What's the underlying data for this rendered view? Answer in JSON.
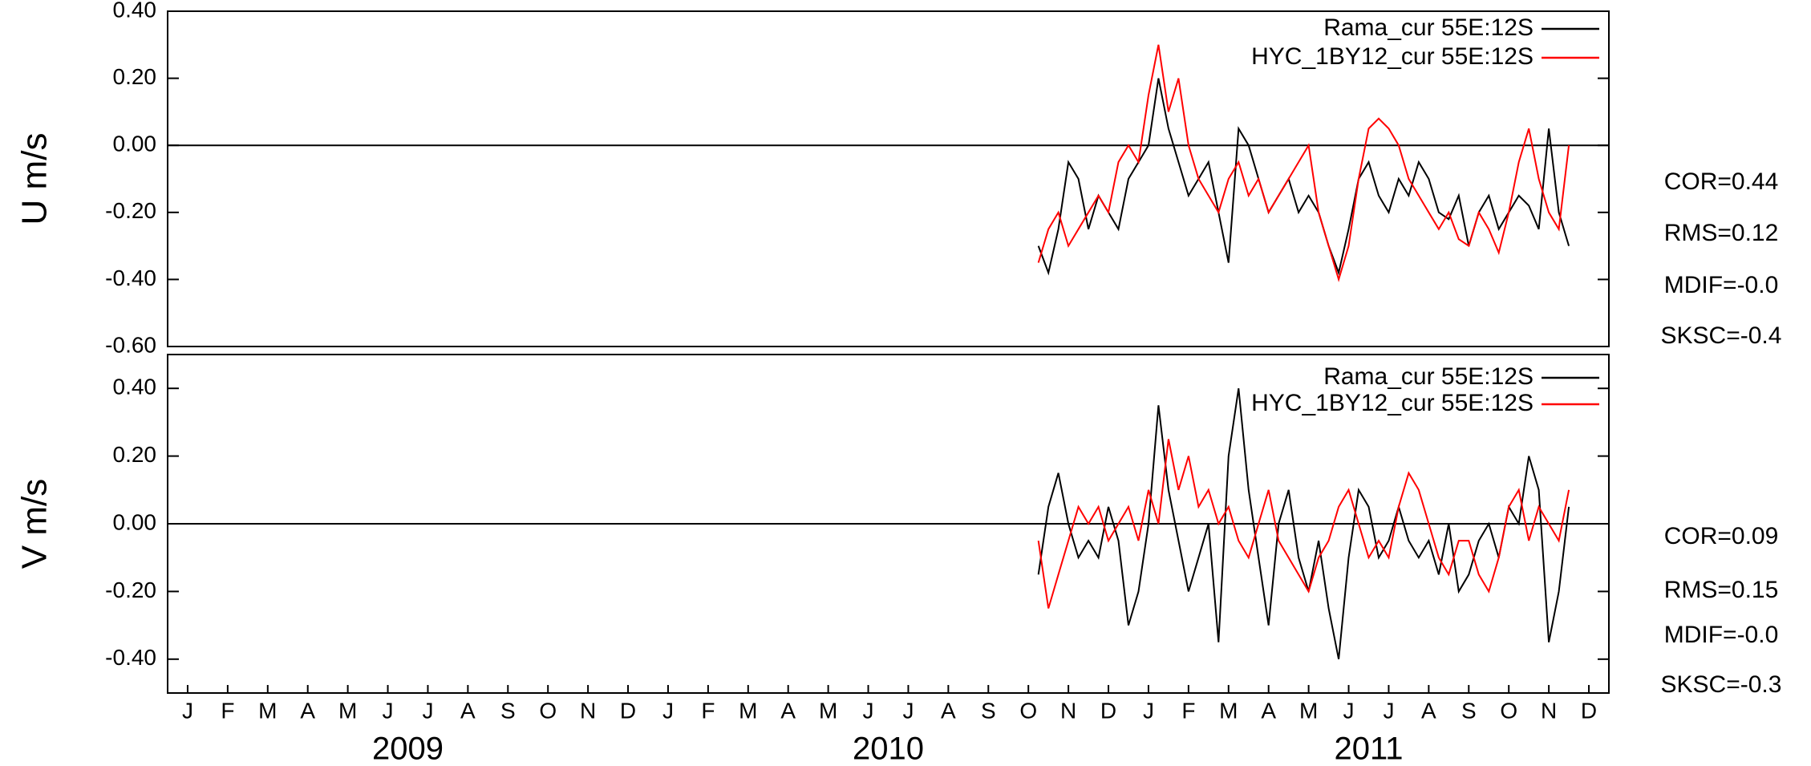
{
  "chart_data": [
    {
      "type": "line",
      "ylabel": "U m/s",
      "xlim": [
        0,
        36
      ],
      "ylim": [
        -0.6,
        0.4
      ],
      "yticks": [
        {
          "value": -0.6,
          "label": "-0.60"
        },
        {
          "value": -0.4,
          "label": "-0.40"
        },
        {
          "value": -0.2,
          "label": "-0.20"
        },
        {
          "value": 0,
          "label": "0.00"
        },
        {
          "value": 0.2,
          "label": "0.20"
        },
        {
          "value": 0.4,
          "label": "0.40"
        }
      ],
      "reference_line": 0,
      "x": [
        21.75,
        22,
        22.25,
        22.5,
        22.75,
        23,
        23.25,
        23.5,
        23.75,
        24,
        24.25,
        24.5,
        24.75,
        25,
        25.25,
        25.5,
        25.75,
        26,
        26.25,
        26.5,
        26.75,
        27,
        27.25,
        27.5,
        27.75,
        28,
        28.25,
        28.5,
        28.75,
        29,
        29.25,
        29.5,
        29.75,
        30,
        30.25,
        30.5,
        30.75,
        31,
        31.25,
        31.5,
        31.75,
        32,
        32.25,
        32.5,
        32.75,
        33,
        33.25,
        33.5,
        33.75,
        34,
        34.25,
        34.5,
        34.75,
        35
      ],
      "series": [
        {
          "name": "Rama_cur 55E:12S",
          "color": "#000000",
          "values": [
            -0.3,
            -0.38,
            -0.25,
            -0.05,
            -0.1,
            -0.25,
            -0.15,
            -0.2,
            -0.25,
            -0.1,
            -0.05,
            0.0,
            0.2,
            0.05,
            -0.05,
            -0.15,
            -0.1,
            -0.05,
            -0.2,
            -0.35,
            0.05,
            0.0,
            -0.1,
            -0.2,
            -0.15,
            -0.1,
            -0.2,
            -0.15,
            -0.2,
            -0.3,
            -0.38,
            -0.25,
            -0.1,
            -0.05,
            -0.15,
            -0.2,
            -0.1,
            -0.15,
            -0.05,
            -0.1,
            -0.2,
            -0.22,
            -0.15,
            -0.3,
            -0.2,
            -0.15,
            -0.25,
            -0.2,
            -0.15,
            -0.18,
            -0.25,
            0.05,
            -0.2,
            -0.3
          ]
        },
        {
          "name": "HYC_1BY12_cur 55E:12S",
          "color": "#ff0000",
          "values": [
            -0.35,
            -0.25,
            -0.2,
            -0.3,
            -0.25,
            -0.2,
            -0.15,
            -0.2,
            -0.05,
            0.0,
            -0.05,
            0.15,
            0.3,
            0.1,
            0.2,
            0.0,
            -0.1,
            -0.15,
            -0.2,
            -0.1,
            -0.05,
            -0.15,
            -0.1,
            -0.2,
            -0.15,
            -0.1,
            -0.05,
            0.0,
            -0.2,
            -0.3,
            -0.4,
            -0.3,
            -0.1,
            0.05,
            0.08,
            0.05,
            0.0,
            -0.1,
            -0.15,
            -0.2,
            -0.25,
            -0.2,
            -0.28,
            -0.3,
            -0.2,
            -0.25,
            -0.32,
            -0.2,
            -0.05,
            0.05,
            -0.1,
            -0.2,
            -0.25,
            0.0
          ]
        }
      ],
      "stats": [
        "COR=0.44",
        "RMS=0.12",
        "MDIF=-0.0",
        "SKSC=-0.4"
      ]
    },
    {
      "type": "line",
      "ylabel": "V m/s",
      "xlim": [
        0,
        36
      ],
      "ylim": [
        -0.5,
        0.5
      ],
      "yticks": [
        {
          "value": -0.4,
          "label": "-0.40"
        },
        {
          "value": -0.2,
          "label": "-0.20"
        },
        {
          "value": 0,
          "label": "0.00"
        },
        {
          "value": 0.2,
          "label": "0.20"
        },
        {
          "value": 0.4,
          "label": "0.40"
        }
      ],
      "reference_line": 0,
      "x": [
        21.75,
        22,
        22.25,
        22.5,
        22.75,
        23,
        23.25,
        23.5,
        23.75,
        24,
        24.25,
        24.5,
        24.75,
        25,
        25.25,
        25.5,
        25.75,
        26,
        26.25,
        26.5,
        26.75,
        27,
        27.25,
        27.5,
        27.75,
        28,
        28.25,
        28.5,
        28.75,
        29,
        29.25,
        29.5,
        29.75,
        30,
        30.25,
        30.5,
        30.75,
        31,
        31.25,
        31.5,
        31.75,
        32,
        32.25,
        32.5,
        32.75,
        33,
        33.25,
        33.5,
        33.75,
        34,
        34.25,
        34.5,
        34.75,
        35
      ],
      "series": [
        {
          "name": "Rama_cur 55E:12S",
          "color": "#000000",
          "values": [
            -0.15,
            0.05,
            0.15,
            0.0,
            -0.1,
            -0.05,
            -0.1,
            0.05,
            -0.05,
            -0.3,
            -0.2,
            0.0,
            0.35,
            0.1,
            -0.05,
            -0.2,
            -0.1,
            0.0,
            -0.35,
            0.2,
            0.4,
            0.1,
            -0.1,
            -0.3,
            0.0,
            0.1,
            -0.1,
            -0.2,
            -0.05,
            -0.25,
            -0.4,
            -0.1,
            0.1,
            0.05,
            -0.1,
            -0.05,
            0.05,
            -0.05,
            -0.1,
            -0.05,
            -0.15,
            0.0,
            -0.2,
            -0.15,
            -0.05,
            0.0,
            -0.1,
            0.05,
            0.0,
            0.2,
            0.1,
            -0.35,
            -0.2,
            0.05
          ]
        },
        {
          "name": "HYC_1BY12_cur 55E:12S",
          "color": "#ff0000",
          "values": [
            -0.05,
            -0.25,
            -0.15,
            -0.05,
            0.05,
            0.0,
            0.05,
            -0.05,
            0.0,
            0.05,
            -0.05,
            0.1,
            0.0,
            0.25,
            0.1,
            0.2,
            0.05,
            0.1,
            0.0,
            0.05,
            -0.05,
            -0.1,
            0.0,
            0.1,
            -0.05,
            -0.1,
            -0.15,
            -0.2,
            -0.1,
            -0.05,
            0.05,
            0.1,
            0.0,
            -0.1,
            -0.05,
            -0.1,
            0.05,
            0.15,
            0.1,
            0.0,
            -0.1,
            -0.15,
            -0.05,
            -0.05,
            -0.15,
            -0.2,
            -0.1,
            0.05,
            0.1,
            -0.05,
            0.05,
            0.0,
            -0.05,
            0.1
          ]
        }
      ],
      "stats": [
        "COR=0.09",
        "RMS=0.15",
        "MDIF=-0.0",
        "SKSC=-0.3"
      ],
      "xticks": [
        {
          "value": 0.5,
          "label": "J"
        },
        {
          "value": 1.5,
          "label": "F"
        },
        {
          "value": 2.5,
          "label": "M"
        },
        {
          "value": 3.5,
          "label": "A"
        },
        {
          "value": 4.5,
          "label": "M"
        },
        {
          "value": 5.5,
          "label": "J"
        },
        {
          "value": 6.5,
          "label": "J"
        },
        {
          "value": 7.5,
          "label": "A"
        },
        {
          "value": 8.5,
          "label": "S"
        },
        {
          "value": 9.5,
          "label": "O"
        },
        {
          "value": 10.5,
          "label": "N"
        },
        {
          "value": 11.5,
          "label": "D"
        },
        {
          "value": 12.5,
          "label": "J"
        },
        {
          "value": 13.5,
          "label": "F"
        },
        {
          "value": 14.5,
          "label": "M"
        },
        {
          "value": 15.5,
          "label": "A"
        },
        {
          "value": 16.5,
          "label": "M"
        },
        {
          "value": 17.5,
          "label": "J"
        },
        {
          "value": 18.5,
          "label": "J"
        },
        {
          "value": 19.5,
          "label": "A"
        },
        {
          "value": 20.5,
          "label": "S"
        },
        {
          "value": 21.5,
          "label": "O"
        },
        {
          "value": 22.5,
          "label": "N"
        },
        {
          "value": 23.5,
          "label": "D"
        },
        {
          "value": 24.5,
          "label": "J"
        },
        {
          "value": 25.5,
          "label": "F"
        },
        {
          "value": 26.5,
          "label": "M"
        },
        {
          "value": 27.5,
          "label": "A"
        },
        {
          "value": 28.5,
          "label": "M"
        },
        {
          "value": 29.5,
          "label": "J"
        },
        {
          "value": 30.5,
          "label": "J"
        },
        {
          "value": 31.5,
          "label": "A"
        },
        {
          "value": 32.5,
          "label": "S"
        },
        {
          "value": 33.5,
          "label": "O"
        },
        {
          "value": 34.5,
          "label": "N"
        },
        {
          "value": 35.5,
          "label": "D"
        }
      ],
      "xgroups": [
        {
          "label": "2009",
          "start": 0,
          "end": 12
        },
        {
          "label": "2010",
          "start": 12,
          "end": 24
        },
        {
          "label": "2011",
          "start": 24,
          "end": 36
        }
      ]
    }
  ]
}
